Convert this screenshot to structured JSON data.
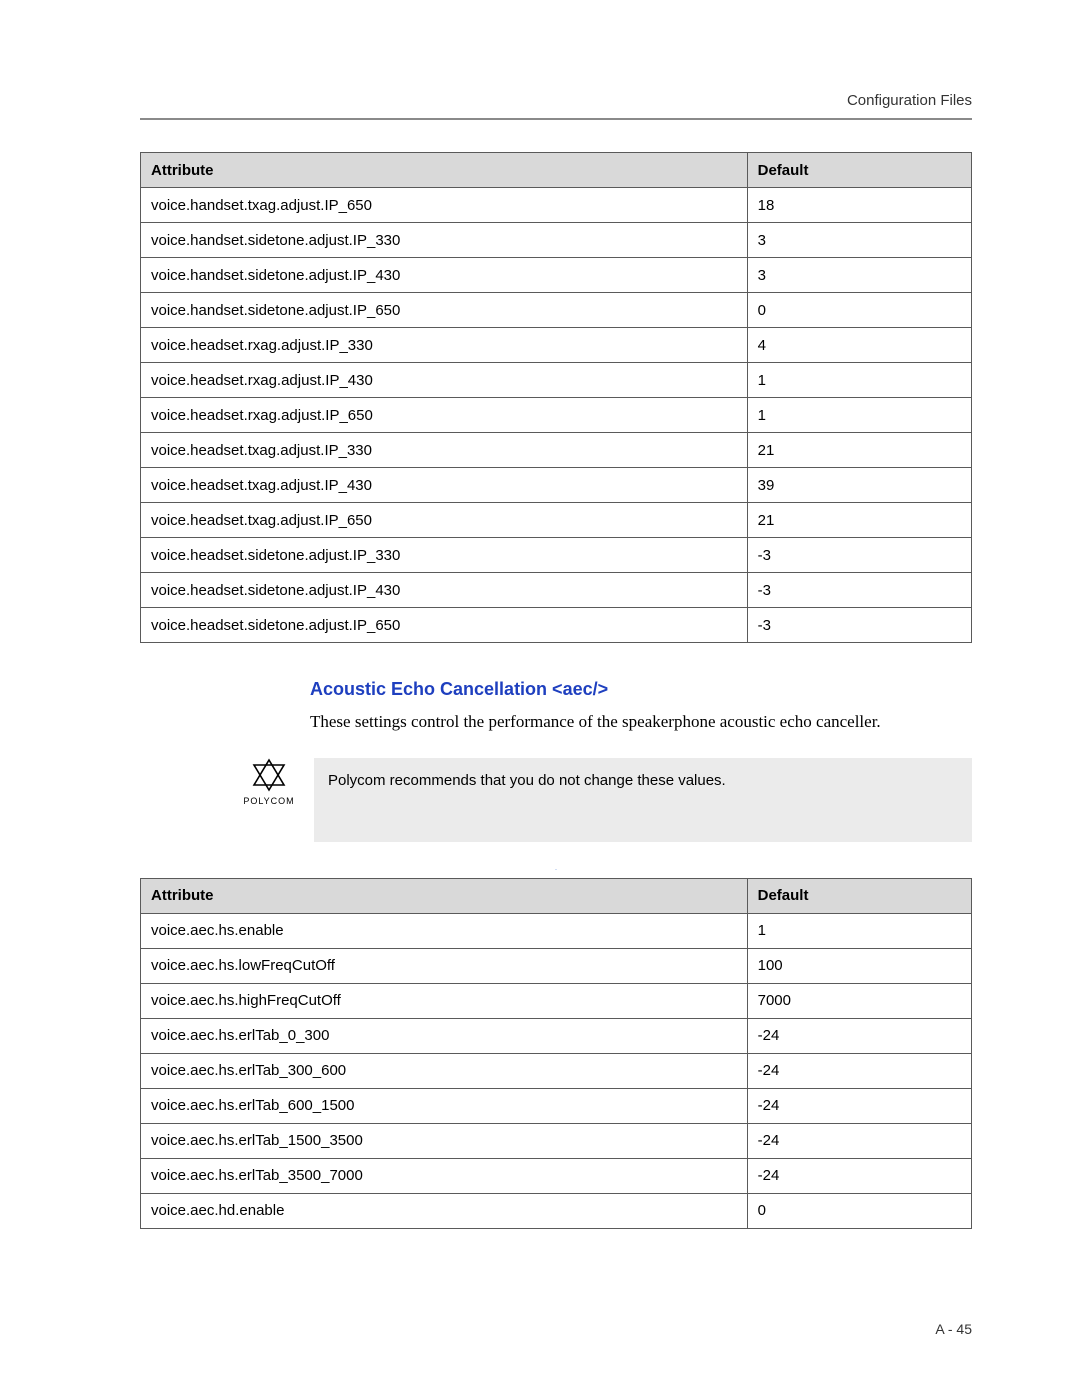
{
  "header": {
    "label": "Configuration Files"
  },
  "colors": {
    "rule": "#8a8a8a",
    "table_border": "#5a5a5a",
    "header_bg": "#d9d9d9",
    "section_title": "#1e3fbf",
    "note_bg": "#ebebeb",
    "page_bg": "#ffffff"
  },
  "table1": {
    "columns": [
      "Attribute",
      "Default"
    ],
    "rows": [
      [
        "voice.handset.txag.adjust.IP_650",
        "18"
      ],
      [
        "voice.handset.sidetone.adjust.IP_330",
        "3"
      ],
      [
        "voice.handset.sidetone.adjust.IP_430",
        "3"
      ],
      [
        "voice.handset.sidetone.adjust.IP_650",
        "0"
      ],
      [
        "voice.headset.rxag.adjust.IP_330",
        "4"
      ],
      [
        "voice.headset.rxag.adjust.IP_430",
        "1"
      ],
      [
        "voice.headset.rxag.adjust.IP_650",
        "1"
      ],
      [
        "voice.headset.txag.adjust.IP_330",
        "21"
      ],
      [
        "voice.headset.txag.adjust.IP_430",
        "39"
      ],
      [
        "voice.headset.txag.adjust.IP_650",
        "21"
      ],
      [
        "voice.headset.sidetone.adjust.IP_330",
        "-3"
      ],
      [
        "voice.headset.sidetone.adjust.IP_430",
        "-3"
      ],
      [
        "voice.headset.sidetone.adjust.IP_650",
        "-3"
      ]
    ]
  },
  "section": {
    "title": "Acoustic Echo Cancellation <aec/>",
    "body": "These settings control the performance of the speakerphone acoustic echo canceller."
  },
  "note": {
    "brand": "POLYCOM",
    "text": "Polycom recommends that you do not change these values."
  },
  "table2": {
    "columns": [
      "Attribute",
      "Default"
    ],
    "rows": [
      [
        "voice.aec.hs.enable",
        "1"
      ],
      [
        "voice.aec.hs.lowFreqCutOff",
        "100"
      ],
      [
        "voice.aec.hs.highFreqCutOff",
        "7000"
      ],
      [
        "voice.aec.hs.erlTab_0_300",
        "-24"
      ],
      [
        "voice.aec.hs.erlTab_300_600",
        "-24"
      ],
      [
        "voice.aec.hs.erlTab_600_1500",
        "-24"
      ],
      [
        "voice.aec.hs.erlTab_1500_3500",
        "-24"
      ],
      [
        "voice.aec.hs.erlTab_3500_7000",
        "-24"
      ],
      [
        "voice.aec.hd.enable",
        "0"
      ]
    ]
  },
  "footer": {
    "page": "A - 45"
  }
}
